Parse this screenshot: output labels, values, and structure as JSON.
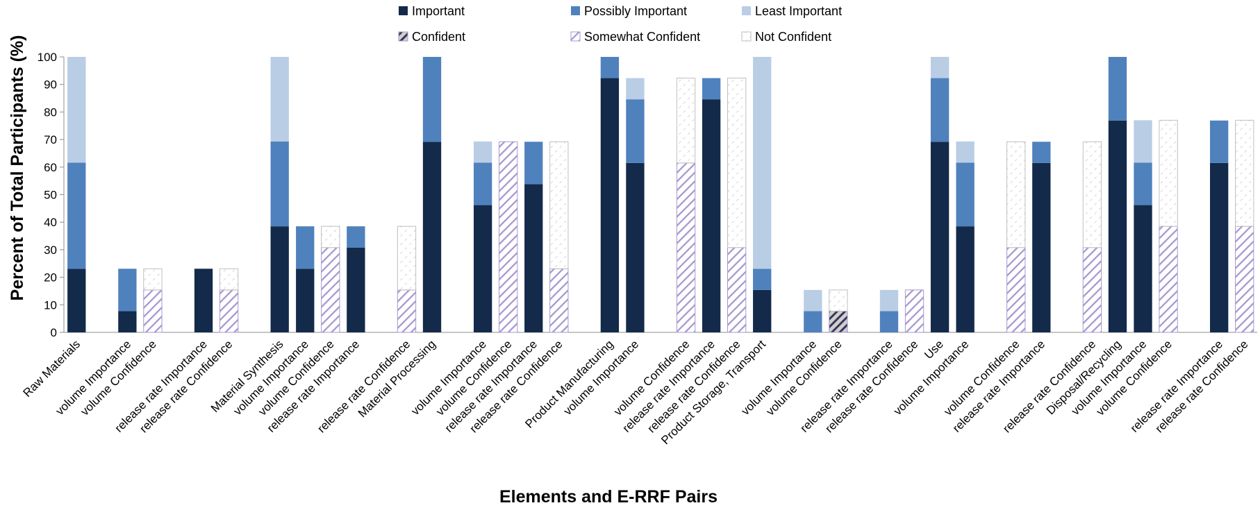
{
  "chart_data": {
    "type": "bar",
    "stacked": true,
    "title": "",
    "xlabel": "Elements and E-RRF Pairs",
    "ylabel": "Percent of Total Participants (%)",
    "ylim": [
      0,
      100
    ],
    "yticks": [
      0,
      10,
      20,
      30,
      40,
      50,
      60,
      70,
      80,
      90,
      100
    ],
    "grid": false,
    "legend_position": "top",
    "colors": {
      "Important": "#132a4a",
      "Possibly Important": "#4f81bd",
      "Least Important": "#b9cde5",
      "Confident": "#4a3f6b",
      "Somewhat Confident": "#a597cf",
      "Not Confident": "#bfbfbf"
    },
    "legend": [
      {
        "name": "Important",
        "kind": "importance"
      },
      {
        "name": "Possibly Important",
        "kind": "importance"
      },
      {
        "name": "Least Important",
        "kind": "importance"
      },
      {
        "name": "Confident",
        "kind": "confidence"
      },
      {
        "name": "Somewhat Confident",
        "kind": "confidence"
      },
      {
        "name": "Not Confident",
        "kind": "confidence"
      }
    ],
    "bars": [
      {
        "label": "Raw Materials",
        "kind": "importance",
        "values": [
          23.1,
          38.5,
          38.4
        ]
      },
      {
        "label": "volume Importance",
        "kind": "importance",
        "values": [
          7.7,
          15.4,
          0
        ]
      },
      {
        "label": "volume Confidence",
        "kind": "confidence",
        "values": [
          0,
          15.4,
          7.7
        ]
      },
      {
        "label": "release rate Importance",
        "kind": "importance",
        "values": [
          23.1,
          0,
          0
        ]
      },
      {
        "label": "release rate Confidence",
        "kind": "confidence",
        "values": [
          0,
          15.4,
          7.7
        ]
      },
      {
        "label": "Material Synthesis",
        "kind": "importance",
        "values": [
          38.5,
          30.8,
          30.7
        ]
      },
      {
        "label": "volume Importance",
        "kind": "importance",
        "values": [
          23.1,
          15.4,
          0
        ]
      },
      {
        "label": "volume Confidence",
        "kind": "confidence",
        "values": [
          0,
          30.8,
          7.7
        ]
      },
      {
        "label": "release rate Importance",
        "kind": "importance",
        "values": [
          30.8,
          7.7,
          0
        ]
      },
      {
        "label": "release rate Confidence",
        "kind": "confidence",
        "values": [
          0,
          15.4,
          23.1
        ]
      },
      {
        "label": "Material Processing",
        "kind": "importance",
        "values": [
          69.2,
          30.8,
          0
        ]
      },
      {
        "label": "volume Importance",
        "kind": "importance",
        "values": [
          46.2,
          15.4,
          7.7
        ]
      },
      {
        "label": "volume Confidence",
        "kind": "confidence",
        "values": [
          0,
          69.2,
          0
        ]
      },
      {
        "label": "release rate Importance",
        "kind": "importance",
        "values": [
          53.8,
          15.4,
          0
        ]
      },
      {
        "label": "release rate Confidence",
        "kind": "confidence",
        "values": [
          0,
          23.1,
          46.1
        ]
      },
      {
        "label": "Product Manufacturing",
        "kind": "importance",
        "values": [
          92.3,
          7.7,
          0
        ]
      },
      {
        "label": "volume Importance",
        "kind": "importance",
        "values": [
          61.5,
          23.1,
          7.7
        ]
      },
      {
        "label": "volume Confidence",
        "kind": "confidence",
        "values": [
          0,
          61.5,
          30.8
        ]
      },
      {
        "label": "release rate Importance",
        "kind": "importance",
        "values": [
          84.6,
          7.7,
          0
        ]
      },
      {
        "label": "release rate Confidence",
        "kind": "confidence",
        "values": [
          0,
          30.8,
          61.5
        ]
      },
      {
        "label": "Product Storage, Transport",
        "kind": "importance",
        "values": [
          15.4,
          7.7,
          76.9
        ]
      },
      {
        "label": "volume Importance",
        "kind": "importance",
        "values": [
          0,
          7.7,
          7.7
        ]
      },
      {
        "label": "volume Confidence",
        "kind": "confidence",
        "values": [
          7.7,
          0,
          7.7
        ]
      },
      {
        "label": "release rate Importance",
        "kind": "importance",
        "values": [
          0,
          7.7,
          7.7
        ]
      },
      {
        "label": "release rate Confidence",
        "kind": "confidence",
        "values": [
          0,
          15.4,
          0
        ]
      },
      {
        "label": "Use",
        "kind": "importance",
        "values": [
          69.2,
          23.1,
          7.7
        ]
      },
      {
        "label": "volume Importance",
        "kind": "importance",
        "values": [
          38.5,
          23.1,
          7.7
        ]
      },
      {
        "label": "volume Confidence",
        "kind": "confidence",
        "values": [
          0,
          30.8,
          38.4
        ]
      },
      {
        "label": "release rate Importance",
        "kind": "importance",
        "values": [
          61.5,
          7.7,
          0
        ]
      },
      {
        "label": "release rate Confidence",
        "kind": "confidence",
        "values": [
          0,
          30.8,
          38.4
        ]
      },
      {
        "label": "Disposal/Recycling",
        "kind": "importance",
        "values": [
          76.9,
          23.1,
          0
        ]
      },
      {
        "label": "volume Importance",
        "kind": "importance",
        "values": [
          46.2,
          15.4,
          15.4
        ]
      },
      {
        "label": "volume Confidence",
        "kind": "confidence",
        "values": [
          0,
          38.5,
          38.5
        ]
      },
      {
        "label": "release rate Importance",
        "kind": "importance",
        "values": [
          61.5,
          15.4,
          0
        ]
      },
      {
        "label": "release rate Confidence",
        "kind": "confidence",
        "values": [
          0,
          38.5,
          38.5
        ]
      }
    ],
    "slots": [
      0,
      2,
      3,
      5,
      6,
      8,
      9,
      10,
      11,
      13,
      14,
      16,
      17,
      18,
      19,
      21,
      22,
      24,
      25,
      26,
      27,
      29,
      30,
      32,
      33,
      34,
      35,
      37,
      38,
      40,
      41,
      42,
      43,
      45,
      46
    ],
    "slot_count": 47
  }
}
